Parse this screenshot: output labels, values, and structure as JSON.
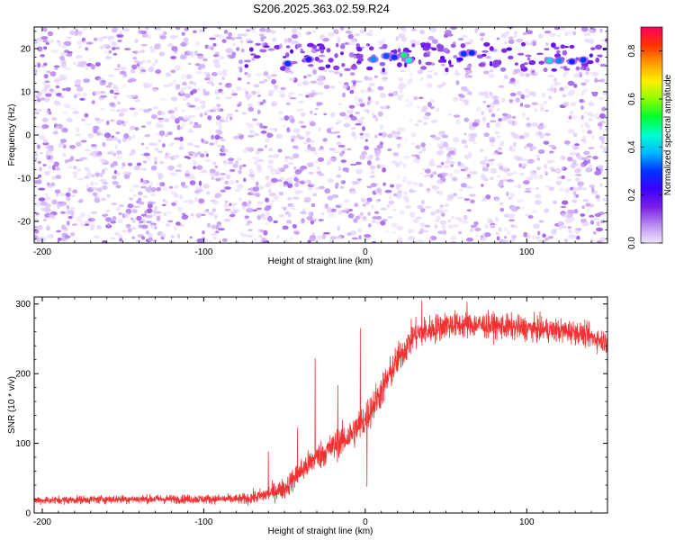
{
  "title": "S206.2025.363.02.59.R24",
  "chart_data": [
    {
      "type": "heatmap",
      "xlabel": "Height of straight line (km)",
      "ylabel": "Frequency (Hz)",
      "xlim": [
        -205,
        150
      ],
      "ylim": [
        -25,
        25
      ],
      "xticks": [
        -200,
        -100,
        0,
        100
      ],
      "yticks": [
        -20,
        -10,
        0,
        10,
        20
      ],
      "colorbar": {
        "label": "Normalized spectral amplitude",
        "range": [
          0.0,
          0.9
        ],
        "ticks": [
          0.0,
          0.2,
          0.4,
          0.6,
          0.8
        ],
        "colors": [
          "#f0e6ff",
          "#b98cf0",
          "#7a1ee6",
          "#3b00ff",
          "#0033ff",
          "#00b7ff",
          "#00ffd0",
          "#00ff30",
          "#8cff00",
          "#ffee00",
          "#ff9a00",
          "#ff3000",
          "#ff0060"
        ]
      },
      "strong_band": {
        "freq_range": [
          15,
          21
        ],
        "x_range": [
          -75,
          150
        ]
      },
      "gap_region": {
        "x_range": [
          21,
          30
        ]
      },
      "hot_spots": [
        {
          "x": -48,
          "y": 16.5,
          "value": 0.3
        },
        {
          "x": -35,
          "y": 17.5,
          "value": 0.25
        },
        {
          "x": 5,
          "y": 17.5,
          "value": 0.35
        },
        {
          "x": 13,
          "y": 18.3,
          "value": 0.32
        },
        {
          "x": 18,
          "y": 18.0,
          "value": 0.3
        },
        {
          "x": 24,
          "y": 18.5,
          "value": 0.5
        },
        {
          "x": 27,
          "y": 17.3,
          "value": 0.45
        },
        {
          "x": 61,
          "y": 18.8,
          "value": 0.3
        },
        {
          "x": 66,
          "y": 19.0,
          "value": 0.28
        },
        {
          "x": 114,
          "y": 17.2,
          "value": 0.42
        },
        {
          "x": 120,
          "y": 17.2,
          "value": 0.35
        },
        {
          "x": 128,
          "y": 17.0,
          "value": 0.28
        },
        {
          "x": 135,
          "y": 17.4,
          "value": 0.3
        }
      ]
    },
    {
      "type": "line",
      "xlabel": "Height of straight line (km)",
      "ylabel": "SNR (10 * v/v)",
      "xlim": [
        -205,
        150
      ],
      "ylim": [
        0,
        310
      ],
      "xticks": [
        -200,
        -100,
        0,
        100
      ],
      "yticks": [
        0,
        100,
        200,
        300
      ],
      "series": [
        {
          "color": "#f03232",
          "trend": {
            "x": [
              -205,
              -150,
              -100,
              -75,
              -65,
              -60,
              -55,
              -50,
              -40,
              -30,
              -20,
              -10,
              0,
              10,
              20,
              30,
              50,
              70,
              100,
              130,
              150
            ],
            "y": [
              18,
              20,
              20,
              20,
              24,
              28,
              32,
              35,
              60,
              80,
              95,
              110,
              135,
              175,
              220,
              255,
              270,
              270,
              265,
              260,
              245
            ]
          },
          "noise_amplitude": {
            "x": [
              -205,
              -80,
              -60,
              -40,
              -20,
              0,
              20,
              60,
              150
            ],
            "y": [
              12,
              14,
              25,
              40,
              45,
              55,
              50,
              40,
              35
            ]
          },
          "spikes": [
            {
              "x": -60,
              "y": 88
            },
            {
              "x": -42,
              "y": 122
            },
            {
              "x": -31,
              "y": 222
            },
            {
              "x": -17,
              "y": 183
            },
            {
              "x": -3,
              "y": 265
            },
            {
              "x": 1,
              "y": 38
            },
            {
              "x": 35,
              "y": 305
            },
            {
              "x": 63,
              "y": 303
            }
          ]
        }
      ]
    }
  ]
}
